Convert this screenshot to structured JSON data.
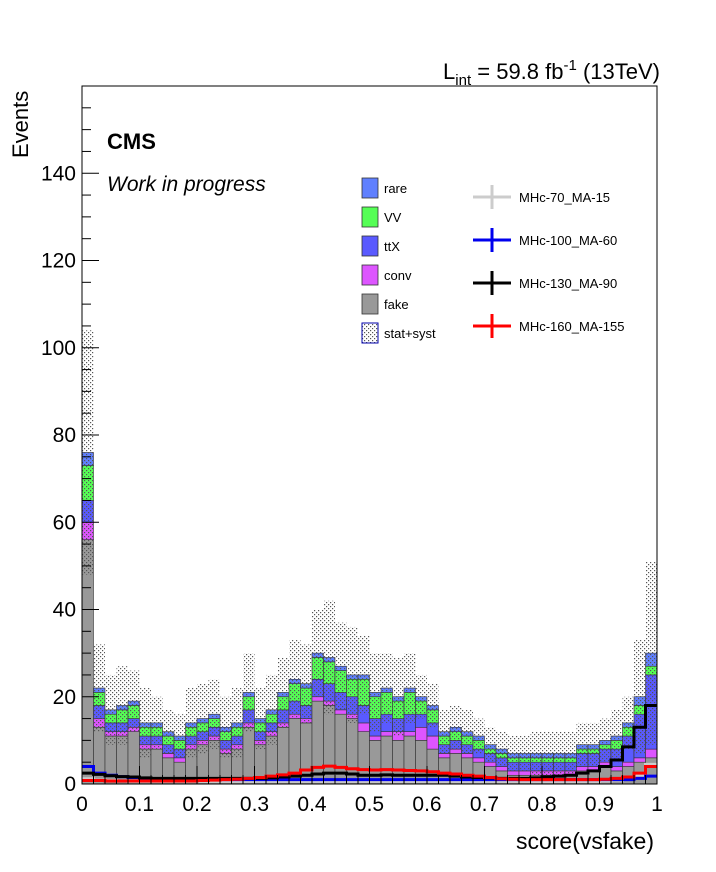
{
  "chart_data": {
    "type": "bar",
    "stacked": true,
    "header": "L",
    "header_sub": "int",
    "header_mid": " = 59.8 fb",
    "header_sup": "-1",
    "header_tail": " (13TeV)",
    "experiment_label": "CMS",
    "status_label": "Work in progress",
    "xlabel": "score(vsfake)",
    "ylabel": "Events",
    "xlim": [
      0,
      1
    ],
    "ylim": [
      0,
      160
    ],
    "x_ticks": [
      "0",
      "0.1",
      "0.2",
      "0.3",
      "0.4",
      "0.5",
      "0.6",
      "0.7",
      "0.8",
      "0.9",
      "1"
    ],
    "y_ticks": [
      "0",
      "20",
      "40",
      "60",
      "80",
      "100",
      "120",
      "140"
    ],
    "bin_width": 0.02,
    "series": [
      {
        "name": "fake",
        "color": "#999999",
        "values": [
          56,
          13,
          11,
          11,
          12,
          8,
          8,
          6,
          5,
          8,
          9,
          10,
          7,
          8,
          13,
          9,
          11,
          13,
          15,
          14,
          19,
          18,
          16,
          15,
          12,
          10,
          11,
          10,
          11,
          10,
          8,
          6,
          7,
          6,
          5,
          4,
          3,
          2,
          2,
          2,
          2,
          2,
          2,
          3,
          3,
          4,
          3,
          4,
          5,
          6
        ]
      },
      {
        "name": "conv",
        "color": "#dd55ff",
        "values": [
          4,
          2,
          1,
          1,
          1,
          1,
          1,
          1,
          1,
          1,
          1,
          1,
          1,
          1,
          1,
          1,
          1,
          1,
          1,
          1,
          1,
          1,
          1,
          1,
          2,
          1,
          1,
          2,
          1,
          3,
          3,
          1,
          1,
          1,
          1,
          1,
          1,
          1,
          1,
          1,
          1,
          1,
          1,
          1,
          1,
          1,
          1,
          1,
          1,
          2
        ]
      },
      {
        "name": "ttX",
        "color": "#5a5aff",
        "values": [
          5,
          3,
          2,
          2,
          2,
          2,
          2,
          2,
          2,
          2,
          2,
          2,
          2,
          2,
          3,
          2,
          2,
          3,
          3,
          3,
          4,
          4,
          4,
          4,
          4,
          4,
          4,
          3,
          4,
          3,
          3,
          2,
          2,
          2,
          2,
          2,
          2,
          2,
          2,
          2,
          2,
          2,
          2,
          3,
          3,
          3,
          4,
          6,
          10,
          17
        ]
      },
      {
        "name": "VV",
        "color": "#55ff55",
        "values": [
          8,
          3,
          2,
          3,
          3,
          2,
          2,
          2,
          2,
          2,
          2,
          2,
          2,
          2,
          3,
          2,
          2,
          3,
          4,
          4,
          5,
          5,
          5,
          4,
          6,
          5,
          5,
          4,
          5,
          3,
          3,
          2,
          2,
          2,
          2,
          1,
          1,
          1,
          1,
          1,
          1,
          1,
          1,
          1,
          1,
          1,
          2,
          2,
          2,
          2
        ]
      },
      {
        "name": "rare",
        "color": "#6080ff",
        "values": [
          3,
          1,
          1,
          1,
          1,
          1,
          1,
          1,
          1,
          1,
          1,
          1,
          1,
          1,
          1,
          1,
          1,
          1,
          1,
          1,
          1,
          1,
          1,
          1,
          1,
          1,
          1,
          1,
          1,
          1,
          1,
          1,
          1,
          1,
          1,
          1,
          1,
          1,
          1,
          1,
          1,
          1,
          1,
          1,
          1,
          1,
          1,
          1,
          2,
          3
        ]
      }
    ],
    "uncertainty": {
      "name": "stat+syst",
      "totals": [
        104,
        32,
        25,
        27,
        26,
        22,
        20,
        17,
        16,
        22,
        23,
        24,
        20,
        22,
        30,
        22,
        25,
        29,
        33,
        32,
        40,
        42,
        37,
        36,
        34,
        30,
        30,
        29,
        30,
        25,
        23,
        17,
        18,
        17,
        15,
        13,
        12,
        11,
        11,
        12,
        12,
        12,
        12,
        14,
        14,
        15,
        17,
        20,
        33,
        51
      ]
    },
    "signals": [
      {
        "name": "MHc-70_MA-15",
        "color": "#cccccc",
        "values": [
          1.2,
          0.9,
          0.8,
          0.7,
          0.6,
          0.6,
          0.6,
          0.6,
          0.6,
          0.6,
          0.6,
          0.6,
          0.6,
          0.6,
          0.6,
          0.6,
          0.6,
          0.6,
          0.6,
          0.6,
          0.6,
          0.6,
          0.6,
          0.6,
          0.6,
          0.6,
          0.6,
          0.6,
          0.6,
          0.6,
          0.6,
          0.6,
          0.6,
          0.6,
          0.6,
          0.6,
          0.6,
          0.6,
          0.6,
          0.6,
          0.6,
          0.6,
          0.6,
          0.6,
          0.6,
          0.7,
          0.9,
          1.2,
          2.0,
          4.5
        ]
      },
      {
        "name": "MHc-100_MA-60",
        "color": "#0000ee",
        "values": [
          4,
          2.5,
          2,
          1.7,
          1.5,
          1.3,
          1.2,
          1.1,
          1.0,
          1.0,
          1.0,
          1.0,
          1.0,
          1.0,
          1.0,
          1.0,
          1.0,
          1.0,
          1.0,
          1.0,
          1.0,
          1.0,
          1.0,
          1.0,
          1.0,
          1.0,
          1.0,
          1.0,
          1.0,
          1.0,
          1.0,
          1.0,
          1.0,
          1.0,
          1.0,
          1.0,
          1.0,
          1.0,
          1.0,
          1.0,
          1.0,
          1.0,
          1.0,
          1.0,
          1.0,
          1.0,
          1.0,
          1.0,
          1.3,
          1.8
        ]
      },
      {
        "name": "MHc-130_MA-90",
        "color": "#000000",
        "values": [
          2.5,
          2.2,
          1.9,
          1.7,
          1.6,
          1.4,
          1.3,
          1.3,
          1.3,
          1.3,
          1.3,
          1.3,
          1.3,
          1.3,
          1.3,
          1.3,
          1.4,
          1.6,
          1.8,
          2.0,
          2.3,
          2.5,
          2.5,
          2.3,
          2.0,
          2.0,
          2.1,
          2.0,
          2.0,
          2.0,
          2.0,
          2.0,
          1.8,
          1.6,
          1.5,
          1.4,
          1.3,
          1.3,
          1.3,
          1.4,
          1.6,
          1.8,
          2.0,
          2.5,
          3.0,
          4.0,
          5.5,
          8.5,
          13,
          18
        ]
      },
      {
        "name": "MHc-160_MA-155",
        "color": "#ff0000",
        "values": [
          0.8,
          0.8,
          0.7,
          0.7,
          0.7,
          0.7,
          0.7,
          0.7,
          0.7,
          0.7,
          0.8,
          0.9,
          1.0,
          1.1,
          1.3,
          1.5,
          1.8,
          2.1,
          2.5,
          3.2,
          3.8,
          4.1,
          3.8,
          3.5,
          3.3,
          3.2,
          3.3,
          3.2,
          3.1,
          3.0,
          2.8,
          2.5,
          2.3,
          2.0,
          1.8,
          1.5,
          1.2,
          1.1,
          1.0,
          1.0,
          1.0,
          1.0,
          1.0,
          1.0,
          1.0,
          1.1,
          1.3,
          1.6,
          2.5,
          4.0
        ]
      }
    ],
    "legend_background_order": [
      "rare",
      "VV",
      "ttX",
      "conv",
      "fake",
      "stat+syst"
    ],
    "legend_signal_order": [
      "MHc-70_MA-15",
      "MHc-100_MA-60",
      "MHc-130_MA-90",
      "MHc-160_MA-155"
    ],
    "legend_placement": "top-center-right",
    "grid": false
  }
}
